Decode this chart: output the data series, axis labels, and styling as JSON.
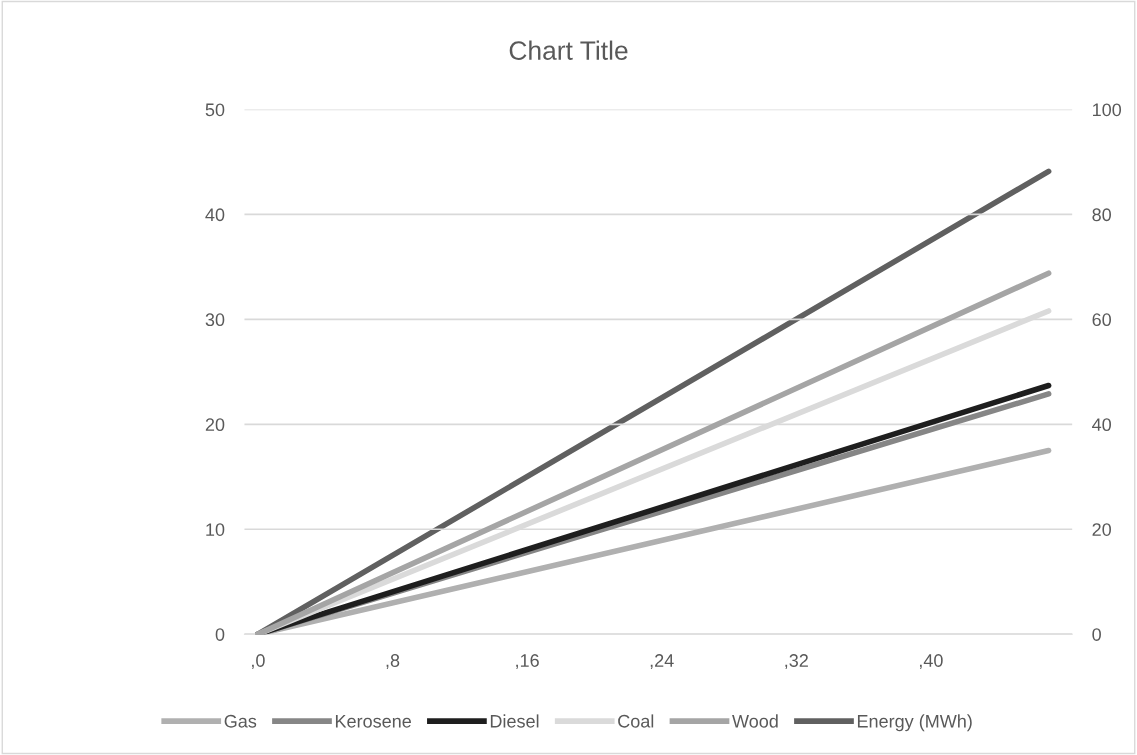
{
  "chart_data": {
    "type": "line",
    "title": "Chart Title",
    "xlim": [
      -0.8,
      48.4
    ],
    "xticks": [
      {
        "value": 0,
        "label": ",0"
      },
      {
        "value": 8,
        "label": ",8"
      },
      {
        "value": 16,
        "label": ",16"
      },
      {
        "value": 24,
        "label": ",24"
      },
      {
        "value": 32,
        "label": ",32"
      },
      {
        "value": 40,
        "label": ",40"
      }
    ],
    "ylim": [
      0,
      50
    ],
    "yticks": [
      0,
      10,
      20,
      30,
      40,
      50
    ],
    "y2lim": [
      0,
      100
    ],
    "y2ticks": [
      0,
      20,
      40,
      60,
      80,
      100
    ],
    "grid": "y",
    "legend": "bottom",
    "marker": "none",
    "line_style": "solid",
    "x": [
      0,
      47
    ],
    "series": [
      {
        "name": "Gas",
        "color": "#b0b0b0",
        "values": [
          0,
          17.5
        ]
      },
      {
        "name": "Kerosene",
        "color": "#868686",
        "values": [
          0,
          22.9
        ]
      },
      {
        "name": "Diesel",
        "color": "#1e1e1e",
        "values": [
          0,
          23.7
        ]
      },
      {
        "name": "Coal",
        "color": "#dadada",
        "values": [
          0,
          30.8
        ]
      },
      {
        "name": "Wood",
        "color": "#a5a5a5",
        "values": [
          0,
          34.4
        ]
      },
      {
        "name": "Energy (MWh)",
        "color": "#606060",
        "values": [
          0,
          88.2
        ],
        "axis": "y2"
      }
    ]
  }
}
